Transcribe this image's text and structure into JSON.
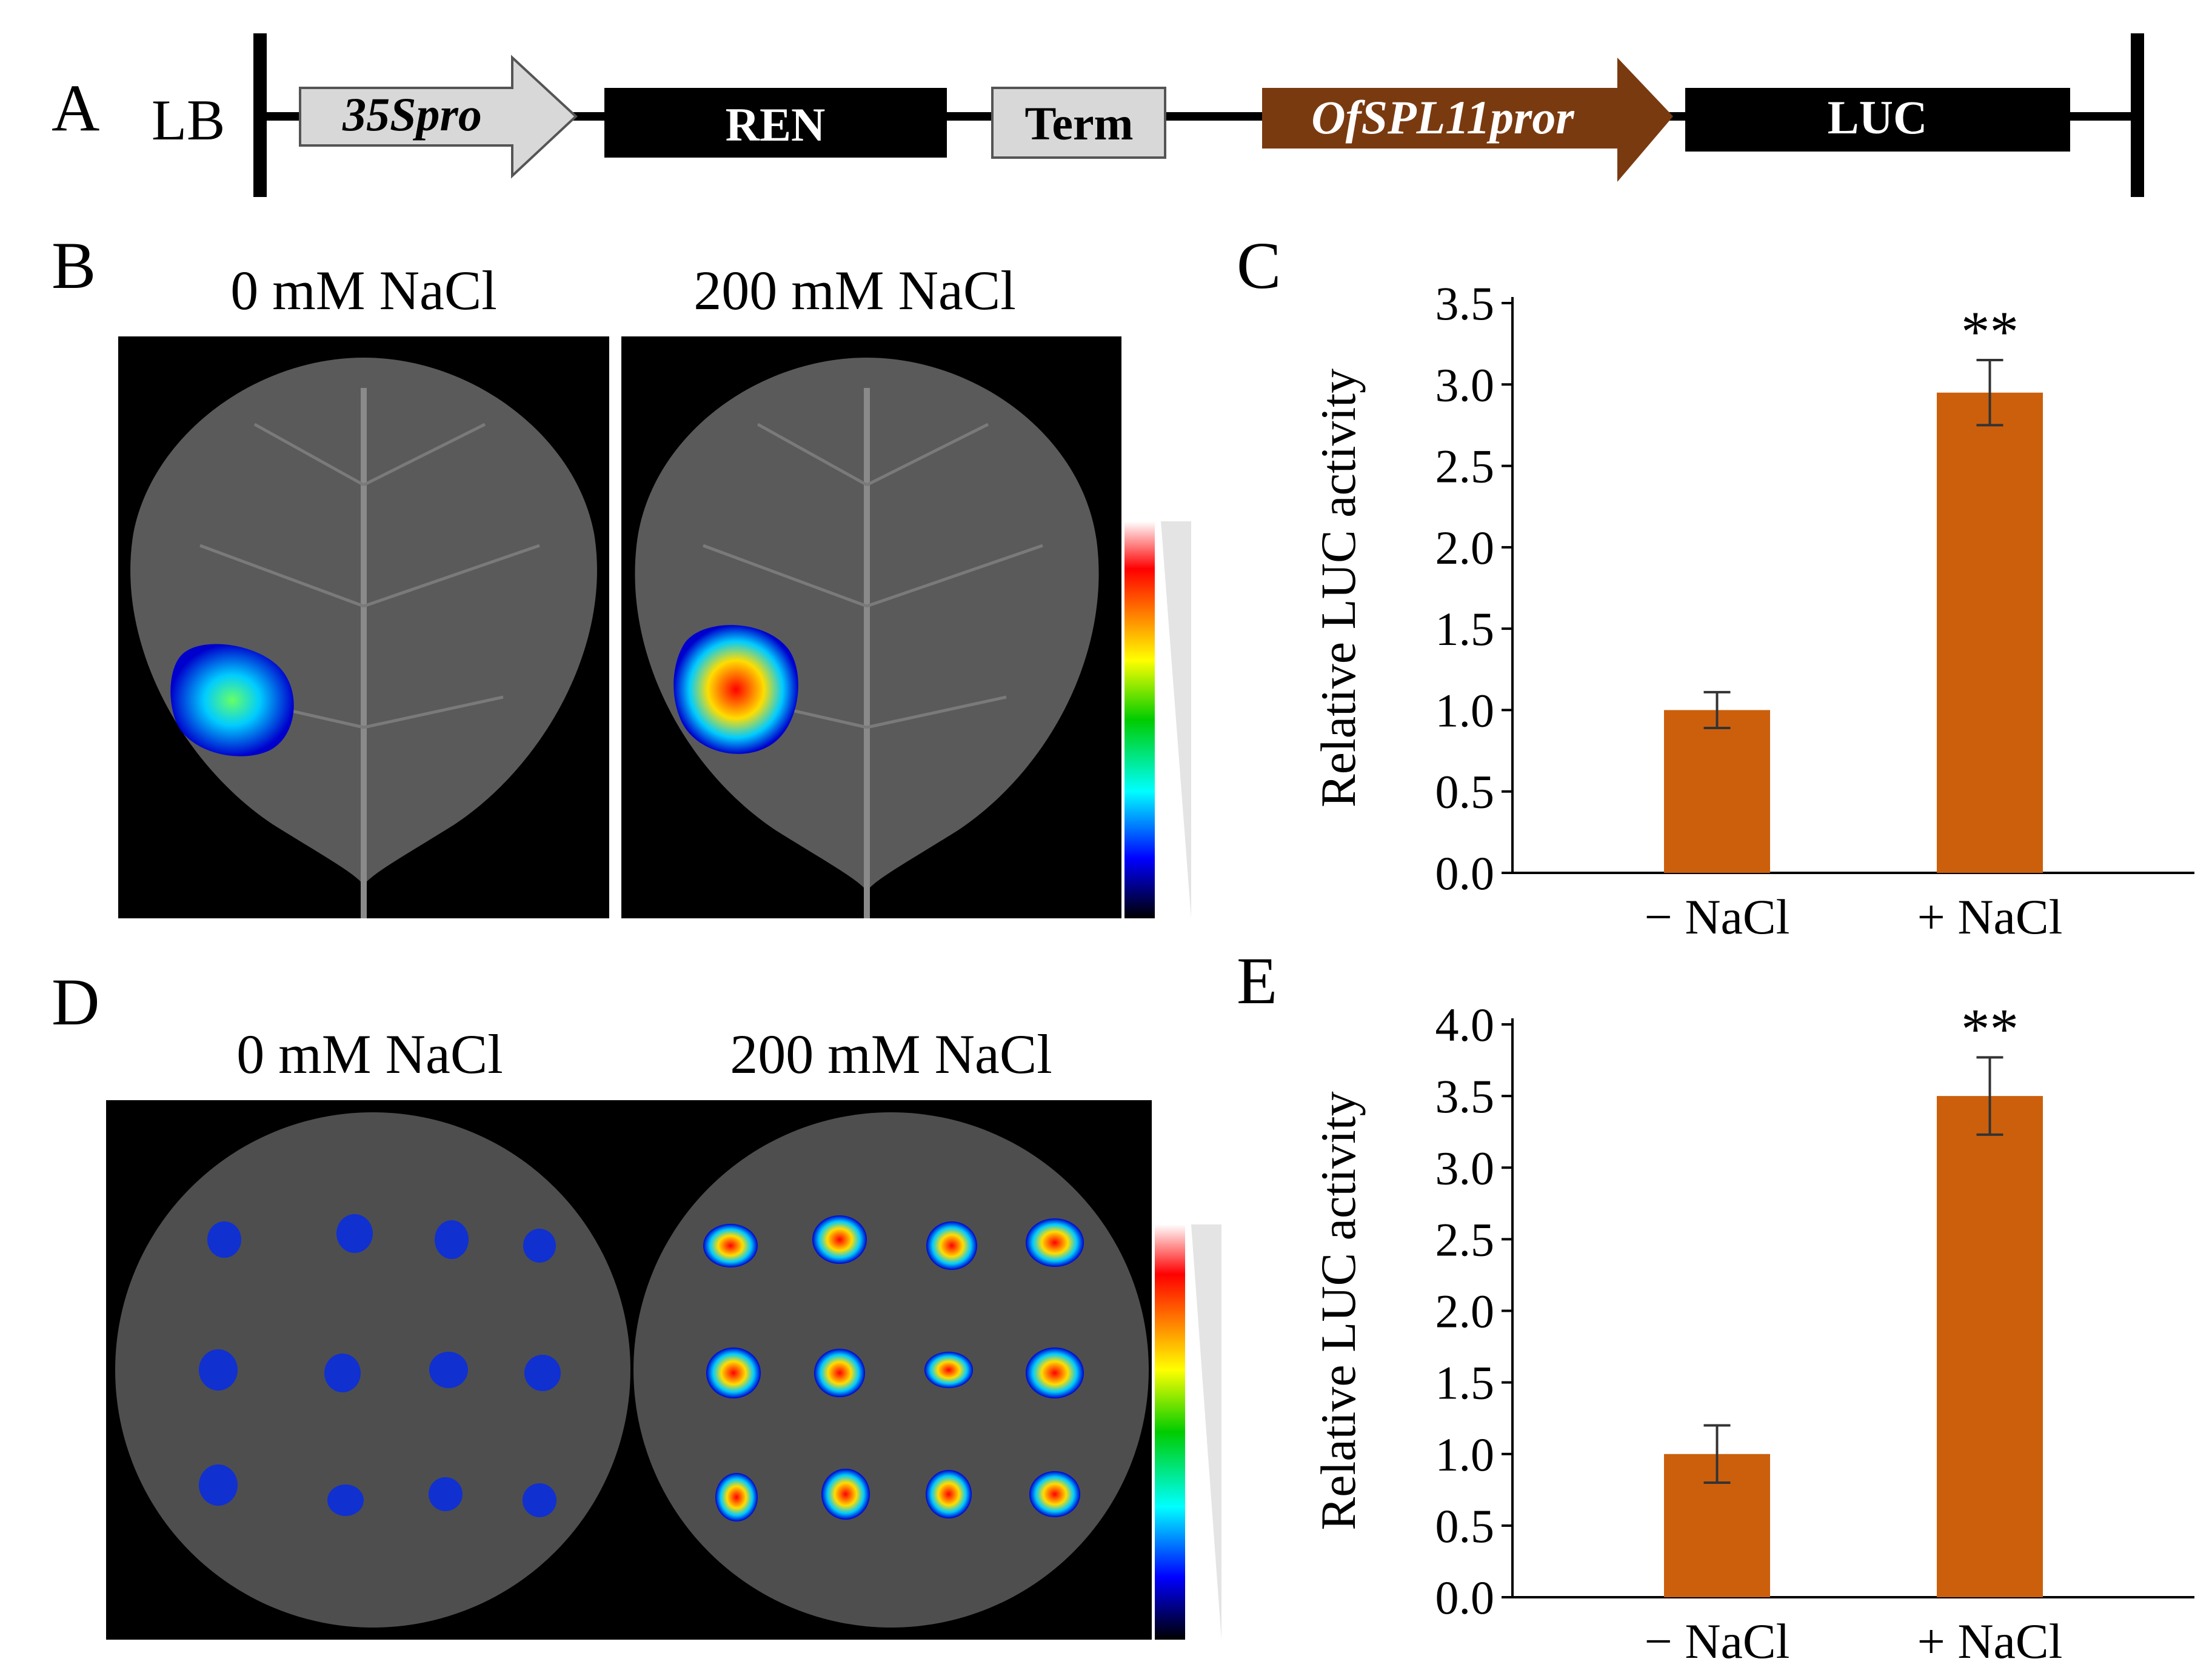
{
  "panel_labels": {
    "a": "A",
    "b": "B",
    "c": "C",
    "d": "D",
    "e": "E"
  },
  "construct": {
    "lb_label": "LB",
    "promoter_35s": "35Spro",
    "ren": "REN",
    "term": "Term",
    "promoter_spl": "OfSPL11pror",
    "luc": "LUC"
  },
  "panel_b": {
    "left_title": "0 mM NaCl",
    "right_title": "200 mM NaCl"
  },
  "panel_d": {
    "left_title": "0 mM NaCl",
    "right_title": "200 mM NaCl"
  },
  "colors": {
    "bar": "#CC5F0C",
    "promoter_spl": "#7A3A10",
    "gray_block": "#D8D8D8"
  },
  "chart_data": [
    {
      "panel": "C",
      "type": "bar",
      "categories": [
        "− NaCl",
        "+ NaCl"
      ],
      "values": [
        1.0,
        2.95
      ],
      "errors": [
        0.11,
        0.2
      ],
      "significance": [
        "",
        "**"
      ],
      "ylabel": "Relative LUC activity",
      "ylim": [
        0,
        3.5
      ],
      "yticks": [
        "0.0",
        "0.5",
        "1.0",
        "1.5",
        "2.0",
        "2.5",
        "3.0",
        "3.5"
      ]
    },
    {
      "panel": "E",
      "type": "bar",
      "categories": [
        "− NaCl",
        "+ NaCl"
      ],
      "values": [
        1.0,
        3.5
      ],
      "errors": [
        0.2,
        0.27
      ],
      "significance": [
        "",
        "**"
      ],
      "ylabel": "Relative LUC activity",
      "ylim": [
        0,
        4.0
      ],
      "yticks": [
        "0.0",
        "0.5",
        "1.0",
        "1.5",
        "2.0",
        "2.5",
        "3.0",
        "3.5",
        "4.0"
      ]
    }
  ]
}
